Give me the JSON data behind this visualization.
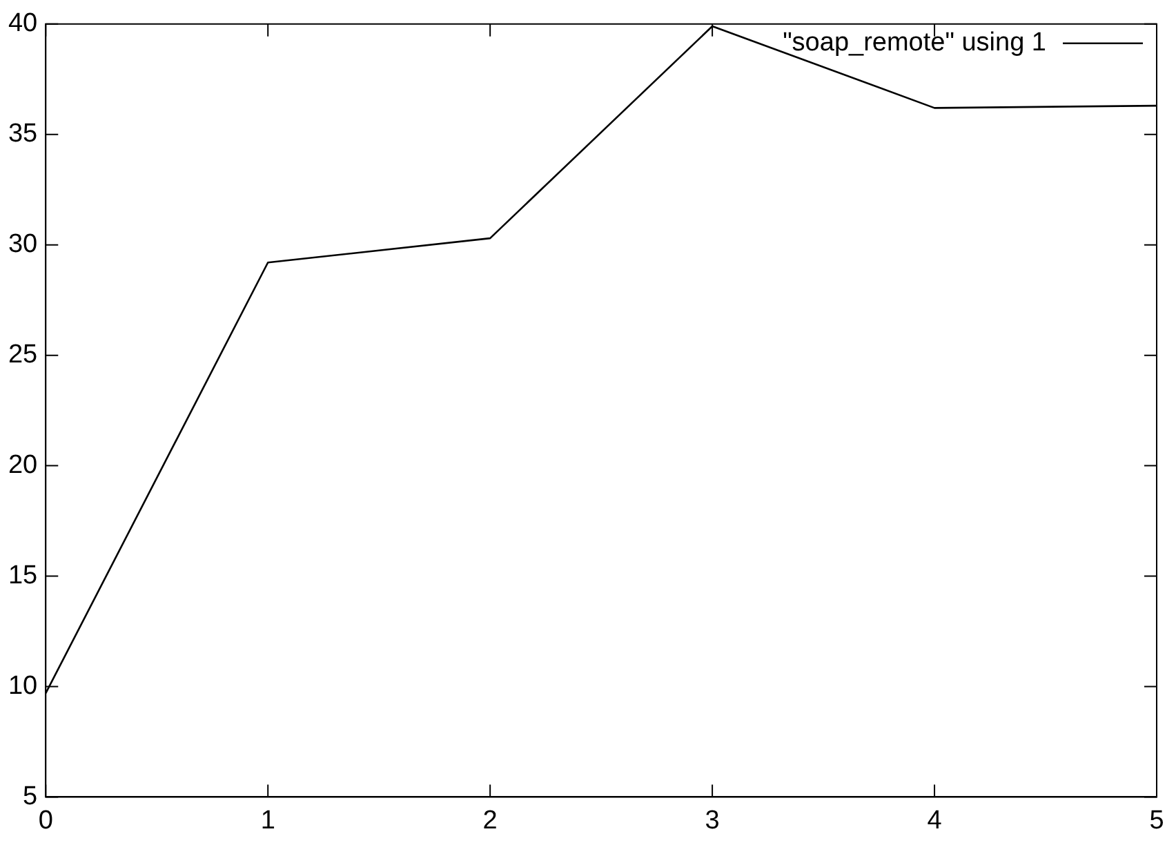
{
  "chart_data": {
    "type": "line",
    "x": [
      0,
      1,
      2,
      3,
      4,
      5
    ],
    "series": [
      {
        "name": "\"soap_remote\" using 1",
        "color": "#000000",
        "values": [
          9.7,
          29.2,
          30.3,
          39.9,
          36.2,
          36.3
        ]
      }
    ],
    "xlim": [
      0,
      5
    ],
    "xticks": [
      0,
      1,
      2,
      3,
      4,
      5
    ],
    "ylim": [
      5,
      40
    ],
    "yticks": [
      5,
      10,
      15,
      20,
      25,
      30,
      35,
      40
    ],
    "grid": false,
    "legend": "top right",
    "marker": "none",
    "line_style": "solid"
  }
}
